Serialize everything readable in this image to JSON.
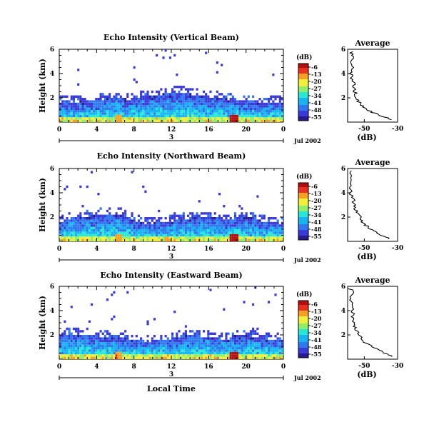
{
  "colors": [
    "#2a1a8f",
    "#3a3ad8",
    "#2f78ef",
    "#18b4f2",
    "#27e8d6",
    "#8fef6a",
    "#f2ef3a",
    "#f5a023",
    "#e8321e",
    "#b40f0f"
  ],
  "x_ticks": [
    "0",
    "4",
    "8",
    "12",
    "16",
    "20",
    "0"
  ],
  "date_day": "3",
  "date_label": "Jul 2002",
  "xlabel": "Local Time",
  "ylabel": "Height (km)",
  "height_ticks": [
    "6",
    "4",
    "2"
  ],
  "cb_title": "(dB)",
  "cb_ticks": [
    "-6",
    "-13",
    "-20",
    "-27",
    "-34",
    "-41",
    "-48",
    "-55"
  ],
  "avg_title": "Average",
  "avg_xlabel": "(dB)",
  "panels": [
    {
      "title": "Echo Intensity (Vertical Beam)",
      "avg_ticks": [
        "-50",
        "-30"
      ]
    },
    {
      "title": "Echo Intensity (Northward Beam)",
      "avg_ticks": [
        "-50",
        "-30"
      ]
    },
    {
      "title": "Echo Intensity (Eastward Beam)",
      "avg_ticks": [
        "-50",
        "-30"
      ]
    }
  ],
  "chart_data": [
    {
      "type": "heatmap",
      "title": "Echo Intensity (Vertical Beam)",
      "xlabel": "",
      "ylabel": "Height (km)",
      "x_unit": "Local Time (hours)",
      "xlim": [
        0,
        24
      ],
      "ylim": [
        0,
        6
      ],
      "colorbar": {
        "label": "(dB)",
        "ticks": [
          -6,
          -13,
          -20,
          -27,
          -34,
          -41,
          -48,
          -55
        ]
      },
      "layer_top_km": [
        1.6,
        1.5,
        1.6,
        1.7,
        1.7,
        1.8,
        1.9,
        1.8,
        1.8,
        2.0,
        2.1,
        2.2,
        2.3,
        2.4,
        2.2,
        2.1,
        2.0,
        1.9,
        1.8,
        1.7,
        1.7,
        1.6,
        1.6,
        1.6,
        1.6
      ],
      "average_profile": {
        "title": "Average",
        "xlabel": "(dB)",
        "xlim": [
          -60,
          -30
        ],
        "height_km": [
          0.2,
          0.5,
          0.8,
          1.1,
          1.4,
          1.8,
          2.2,
          2.6,
          3.0,
          3.5,
          4.0,
          4.5,
          5.0,
          5.5,
          5.9
        ],
        "dB": [
          -33,
          -40,
          -45,
          -49,
          -52,
          -54,
          -55,
          -56,
          -56,
          -57,
          -58,
          -57,
          -58,
          -57,
          -58
        ]
      }
    },
    {
      "type": "heatmap",
      "title": "Echo Intensity (Northward Beam)",
      "xlabel": "",
      "ylabel": "Height (km)",
      "x_unit": "Local Time (hours)",
      "xlim": [
        0,
        24
      ],
      "ylim": [
        0,
        6
      ],
      "colorbar": {
        "label": "(dB)",
        "ticks": [
          -6,
          -13,
          -20,
          -27,
          -34,
          -41,
          -48,
          -55
        ]
      },
      "layer_top_km": [
        1.5,
        1.8,
        1.9,
        2.0,
        2.1,
        2.2,
        2.2,
        2.0,
        1.6,
        1.4,
        1.4,
        1.5,
        1.6,
        1.7,
        1.8,
        1.9,
        1.9,
        1.8,
        1.7,
        1.8,
        1.9,
        1.7,
        1.5,
        1.4,
        1.4
      ],
      "average_profile": {
        "title": "Average",
        "xlabel": "(dB)",
        "xlim": [
          -60,
          -30
        ],
        "height_km": [
          0.2,
          0.5,
          0.8,
          1.1,
          1.4,
          1.8,
          2.2,
          2.6,
          3.0,
          3.5,
          4.0,
          4.5,
          5.0,
          5.5,
          5.9
        ],
        "dB": [
          -35,
          -40,
          -44,
          -47,
          -50,
          -52,
          -53,
          -55,
          -56,
          -57,
          -58,
          -58,
          -59,
          -58,
          -59
        ]
      }
    },
    {
      "type": "heatmap",
      "title": "Echo Intensity (Eastward Beam)",
      "xlabel": "Local Time",
      "ylabel": "Height (km)",
      "x_unit": "Local Time (hours)",
      "xlim": [
        0,
        24
      ],
      "ylim": [
        0,
        6
      ],
      "colorbar": {
        "label": "(dB)",
        "ticks": [
          -6,
          -13,
          -20,
          -27,
          -34,
          -41,
          -48,
          -55
        ]
      },
      "layer_top_km": [
        1.7,
        2.0,
        2.0,
        1.9,
        1.8,
        1.7,
        1.7,
        1.6,
        1.5,
        1.4,
        1.4,
        1.5,
        1.6,
        1.8,
        1.9,
        1.8,
        1.7,
        1.6,
        1.6,
        1.9,
        1.8,
        1.7,
        1.6,
        1.6,
        1.6
      ],
      "average_profile": {
        "title": "Average",
        "xlabel": "(dB)",
        "xlim": [
          -60,
          -30
        ],
        "height_km": [
          0.2,
          0.5,
          0.8,
          1.1,
          1.4,
          1.8,
          2.2,
          2.6,
          3.0,
          3.5,
          4.0,
          4.5,
          5.0,
          5.5,
          5.9
        ],
        "dB": [
          -33,
          -38,
          -42,
          -46,
          -50,
          -52,
          -54,
          -56,
          -56,
          -57,
          -57,
          -58,
          -58,
          -57,
          -59
        ]
      }
    }
  ]
}
